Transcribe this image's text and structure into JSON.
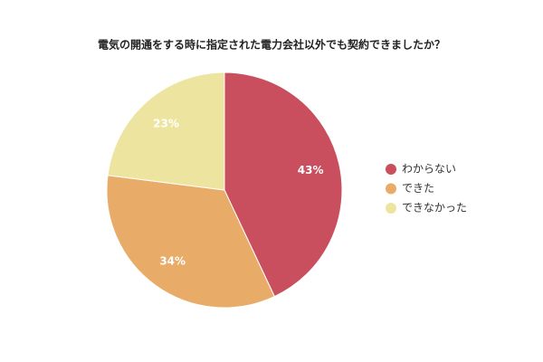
{
  "chart_data": {
    "type": "pie",
    "title": "電気の開通をする時に指定された電力会社以外でも契約できましたか？",
    "categories": [
      "わからない",
      "できた",
      "できなかった"
    ],
    "values": [
      43,
      34,
      23
    ],
    "value_labels": [
      "43%",
      "34%",
      "23%"
    ],
    "colors": [
      "#c94f5f",
      "#e8ac68",
      "#ede59f"
    ],
    "legend": "right"
  }
}
